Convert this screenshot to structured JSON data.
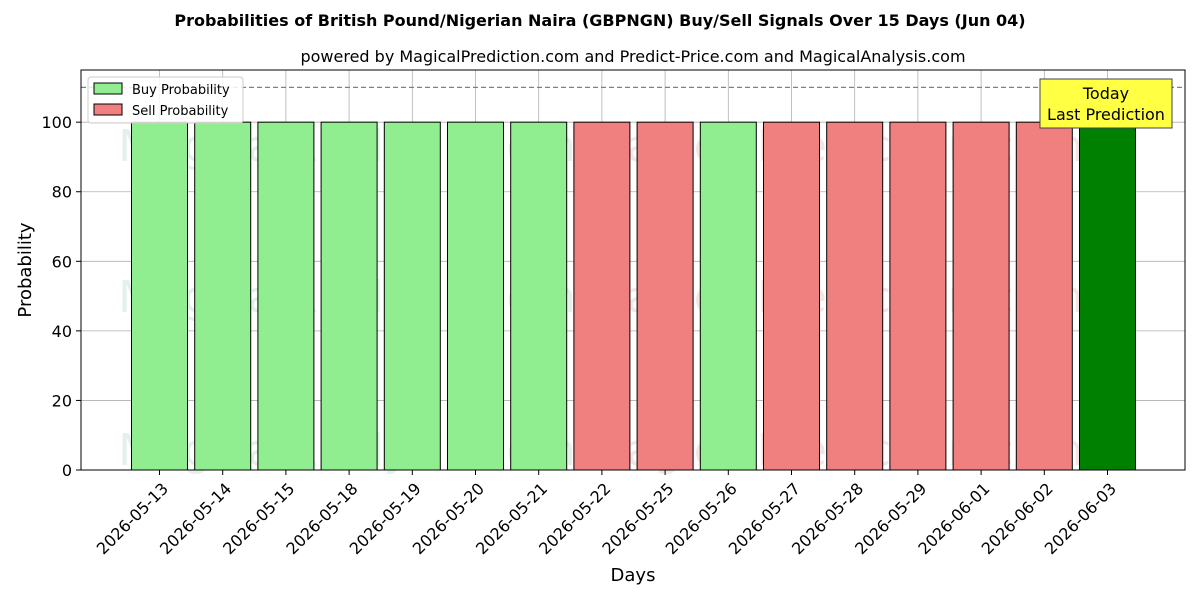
{
  "chart_data": {
    "type": "bar",
    "title": "Probabilities of British Pound/Nigerian Naira (GBPNGN) Buy/Sell Signals Over 15 Days (Jun 04)",
    "subtitle": "powered by MagicalPrediction.com and Predict-Price.com and MagicalAnalysis.com",
    "xlabel": "Days",
    "ylabel": "Probability",
    "ylim": [
      0,
      115
    ],
    "yticks": [
      0,
      20,
      40,
      60,
      80,
      100
    ],
    "reference_line": 110,
    "grid": true,
    "legend_position": "top-left",
    "legend": [
      {
        "label": "Buy Probability",
        "color": "#90ee90"
      },
      {
        "label": "Sell Probability",
        "color": "#f08080"
      }
    ],
    "annotation": {
      "line1": "Today",
      "line2": "Last Prediction",
      "color": "#ffff44"
    },
    "watermarks": [
      "MagicalAnalysis.com",
      "MagicalPrediction.com"
    ],
    "categories": [
      "2026-05-13",
      "2026-05-14",
      "2026-05-15",
      "2026-05-18",
      "2026-05-19",
      "2026-05-20",
      "2026-05-21",
      "2026-05-22",
      "2026-05-25",
      "2026-05-26",
      "2026-05-27",
      "2026-05-28",
      "2026-05-29",
      "2026-06-01",
      "2026-06-02",
      "2026-06-03"
    ],
    "values": [
      100,
      100,
      100,
      100,
      100,
      100,
      100,
      100,
      100,
      100,
      100,
      100,
      100,
      100,
      100,
      100
    ],
    "signals": [
      "buy",
      "buy",
      "buy",
      "buy",
      "buy",
      "buy",
      "buy",
      "sell",
      "sell",
      "buy",
      "sell",
      "sell",
      "sell",
      "sell",
      "sell",
      "today"
    ],
    "colors": {
      "buy": "#90ee90",
      "sell": "#f08080",
      "today": "#008000"
    }
  }
}
